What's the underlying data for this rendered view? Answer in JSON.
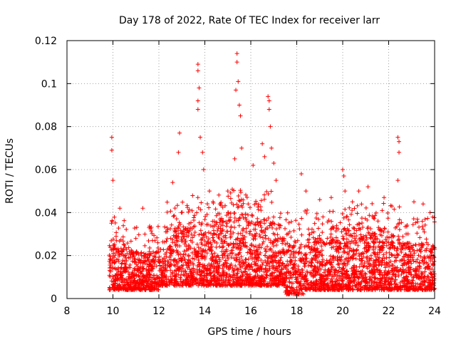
{
  "chart_data": {
    "type": "scatter",
    "title": "Day 178 of 2022, Rate Of TEC Index for receiver larr",
    "xlabel": "GPS time / hours",
    "ylabel": "ROTI / TECUs",
    "xlim": [
      8,
      24
    ],
    "ylim": [
      0,
      0.12
    ],
    "xticks": [
      "8",
      "10",
      "12",
      "14",
      "16",
      "18",
      "20",
      "22",
      "24"
    ],
    "yticks": [
      "0",
      "0.02",
      "0.04",
      "0.06",
      "0.08",
      "0.1",
      "0.12"
    ],
    "grid": true,
    "marker": "plus",
    "color": "#ff0000",
    "peaks": [
      {
        "x": 9.95,
        "y": 0.075
      },
      {
        "x": 9.95,
        "y": 0.069
      },
      {
        "x": 10.0,
        "y": 0.055
      },
      {
        "x": 10.3,
        "y": 0.042
      },
      {
        "x": 11.3,
        "y": 0.042
      },
      {
        "x": 12.6,
        "y": 0.054
      },
      {
        "x": 12.85,
        "y": 0.068
      },
      {
        "x": 12.9,
        "y": 0.077
      },
      {
        "x": 13.7,
        "y": 0.109
      },
      {
        "x": 13.7,
        "y": 0.106
      },
      {
        "x": 13.75,
        "y": 0.098
      },
      {
        "x": 13.7,
        "y": 0.092
      },
      {
        "x": 13.7,
        "y": 0.088
      },
      {
        "x": 13.8,
        "y": 0.075
      },
      {
        "x": 13.9,
        "y": 0.068
      },
      {
        "x": 13.95,
        "y": 0.06
      },
      {
        "x": 14.2,
        "y": 0.05
      },
      {
        "x": 15.0,
        "y": 0.05
      },
      {
        "x": 15.3,
        "y": 0.065
      },
      {
        "x": 15.35,
        "y": 0.097
      },
      {
        "x": 15.4,
        "y": 0.114
      },
      {
        "x": 15.4,
        "y": 0.11
      },
      {
        "x": 15.45,
        "y": 0.101
      },
      {
        "x": 15.5,
        "y": 0.09
      },
      {
        "x": 15.55,
        "y": 0.085
      },
      {
        "x": 15.6,
        "y": 0.07
      },
      {
        "x": 16.1,
        "y": 0.062
      },
      {
        "x": 16.5,
        "y": 0.072
      },
      {
        "x": 16.6,
        "y": 0.066
      },
      {
        "x": 16.75,
        "y": 0.094
      },
      {
        "x": 16.8,
        "y": 0.092
      },
      {
        "x": 16.8,
        "y": 0.088
      },
      {
        "x": 16.85,
        "y": 0.08
      },
      {
        "x": 16.9,
        "y": 0.07
      },
      {
        "x": 17.0,
        "y": 0.063
      },
      {
        "x": 17.1,
        "y": 0.055
      },
      {
        "x": 18.2,
        "y": 0.058
      },
      {
        "x": 18.4,
        "y": 0.05
      },
      {
        "x": 19.0,
        "y": 0.046
      },
      {
        "x": 19.5,
        "y": 0.047
      },
      {
        "x": 20.0,
        "y": 0.06
      },
      {
        "x": 20.05,
        "y": 0.057
      },
      {
        "x": 20.1,
        "y": 0.05
      },
      {
        "x": 20.7,
        "y": 0.05
      },
      {
        "x": 21.1,
        "y": 0.052
      },
      {
        "x": 21.8,
        "y": 0.047
      },
      {
        "x": 22.4,
        "y": 0.075
      },
      {
        "x": 22.45,
        "y": 0.073
      },
      {
        "x": 22.45,
        "y": 0.068
      },
      {
        "x": 22.4,
        "y": 0.055
      },
      {
        "x": 23.1,
        "y": 0.045
      },
      {
        "x": 23.5,
        "y": 0.044
      },
      {
        "x": 23.8,
        "y": 0.04
      }
    ]
  }
}
